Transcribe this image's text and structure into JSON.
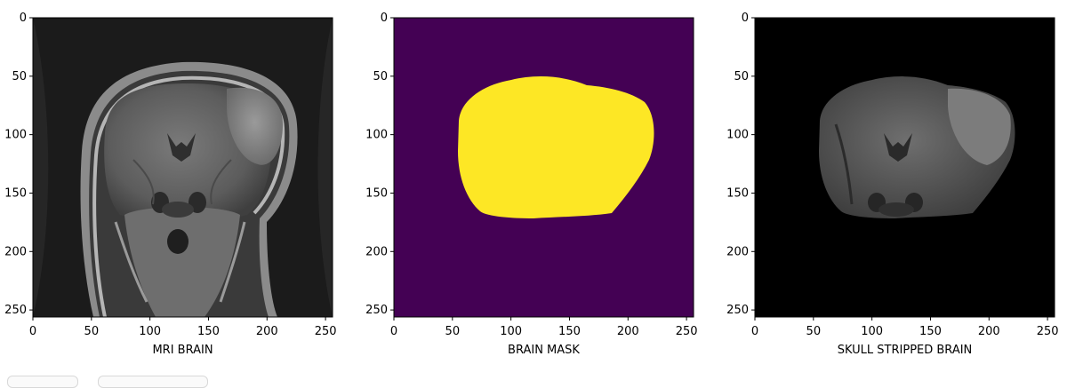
{
  "figure": {
    "panels": [
      {
        "id": "mri",
        "xlabel": "MRI BRAIN"
      },
      {
        "id": "mask",
        "xlabel": "BRAIN MASK"
      },
      {
        "id": "stripped",
        "xlabel": "SKULL STRIPPED BRAIN"
      }
    ],
    "axes": {
      "xlim": [
        0,
        256
      ],
      "ylim": [
        256,
        0
      ],
      "xticks": [
        "0",
        "50",
        "100",
        "150",
        "200",
        "250"
      ],
      "yticks": [
        "0",
        "50",
        "100",
        "150",
        "200",
        "250"
      ]
    },
    "colors": {
      "mask_background": "#440154",
      "mask_foreground": "#fde725",
      "mri_background": "#1b1b1b",
      "stripped_background": "#000000"
    }
  }
}
